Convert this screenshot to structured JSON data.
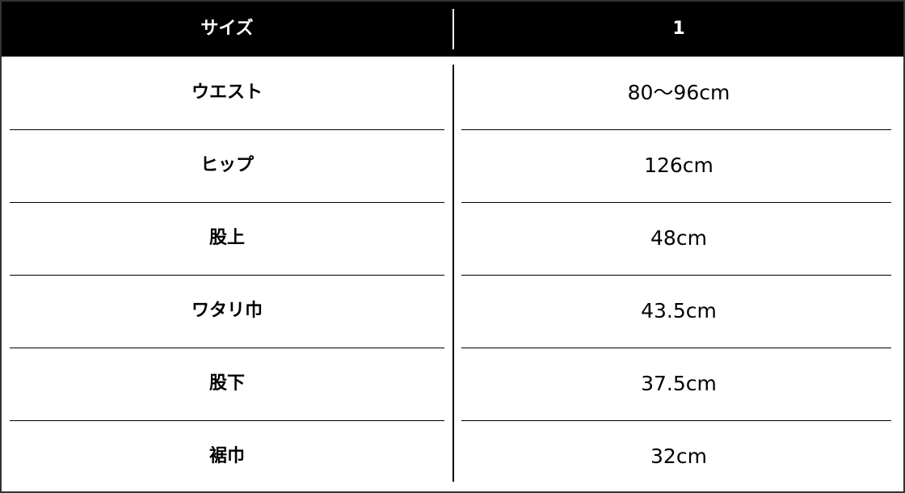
{
  "header": {
    "label": "サイズ",
    "value": "1"
  },
  "rows": [
    {
      "label": "ウエスト",
      "value": "80〜96cm"
    },
    {
      "label": "ヒップ",
      "value": "126cm"
    },
    {
      "label": "股上",
      "value": "48cm"
    },
    {
      "label": "ワタリ巾",
      "value": "43.5cm"
    },
    {
      "label": "股下",
      "value": "37.5cm"
    },
    {
      "label": "裾巾",
      "value": "32cm"
    }
  ]
}
